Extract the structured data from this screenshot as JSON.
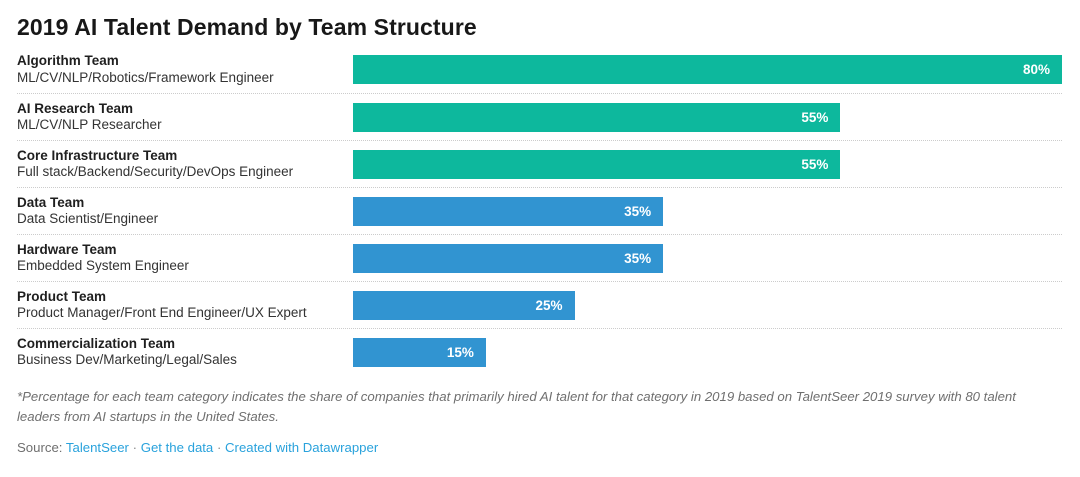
{
  "title": "2019 AI Talent Demand by Team Structure",
  "colors": {
    "green": "#0db89d",
    "blue": "#3194d1"
  },
  "rows": [
    {
      "team": "Algorithm Team",
      "role": "ML/CV/NLP/Robotics/Framework Engineer",
      "value": 80,
      "value_label": "80%",
      "color": "green"
    },
    {
      "team": "AI Research Team",
      "role": "ML/CV/NLP Researcher",
      "value": 55,
      "value_label": "55%",
      "color": "green"
    },
    {
      "team": "Core Infrastructure Team",
      "role": "Full stack/Backend/Security/DevOps Engineer",
      "value": 55,
      "value_label": "55%",
      "color": "green"
    },
    {
      "team": "Data Team",
      "role": "Data Scientist/Engineer",
      "value": 35,
      "value_label": "35%",
      "color": "blue"
    },
    {
      "team": "Hardware Team",
      "role": "Embedded System Engineer",
      "value": 35,
      "value_label": "35%",
      "color": "blue"
    },
    {
      "team": "Product Team",
      "role": "Product Manager/Front End Engineer/UX Expert",
      "value": 25,
      "value_label": "25%",
      "color": "blue"
    },
    {
      "team": "Commercialization Team",
      "role": "Business Dev/Marketing/Legal/Sales",
      "value": 15,
      "value_label": "15%",
      "color": "blue"
    }
  ],
  "chart_data": {
    "type": "bar",
    "orientation": "horizontal",
    "title": "2019 AI Talent Demand by Team Structure",
    "categories": [
      "Algorithm Team",
      "AI Research Team",
      "Core Infrastructure Team",
      "Data Team",
      "Hardware Team",
      "Product Team",
      "Commercialization Team"
    ],
    "category_sublabels": [
      "ML/CV/NLP/Robotics/Framework Engineer",
      "ML/CV/NLP Researcher",
      "Full stack/Backend/Security/DevOps Engineer",
      "Data Scientist/Engineer",
      "Embedded System Engineer",
      "Product Manager/Front End Engineer/UX Expert",
      "Business Dev/Marketing/Legal/Sales"
    ],
    "values": [
      80,
      55,
      55,
      35,
      35,
      25,
      15
    ],
    "value_labels": [
      "80%",
      "55%",
      "55%",
      "35%",
      "35%",
      "25%",
      "15%"
    ],
    "bar_colors": [
      "#0db89d",
      "#0db89d",
      "#0db89d",
      "#3194d1",
      "#3194d1",
      "#3194d1",
      "#3194d1"
    ],
    "xlabel": "",
    "ylabel": "",
    "xlim": [
      0,
      80
    ],
    "grid": false,
    "legend": false,
    "value_label_position": "inside-end",
    "unit": "%"
  },
  "footnote": "*Percentage for each team category indicates the share of companies that primarily hired AI talent for that category in 2019 based on TalentSeer 2019 survey with 80 talent leaders from AI startups in the United States.",
  "source": {
    "prefix": "Source:",
    "separator": "·",
    "links": [
      "TalentSeer",
      "Get the data",
      "Created with Datawrapper"
    ]
  }
}
